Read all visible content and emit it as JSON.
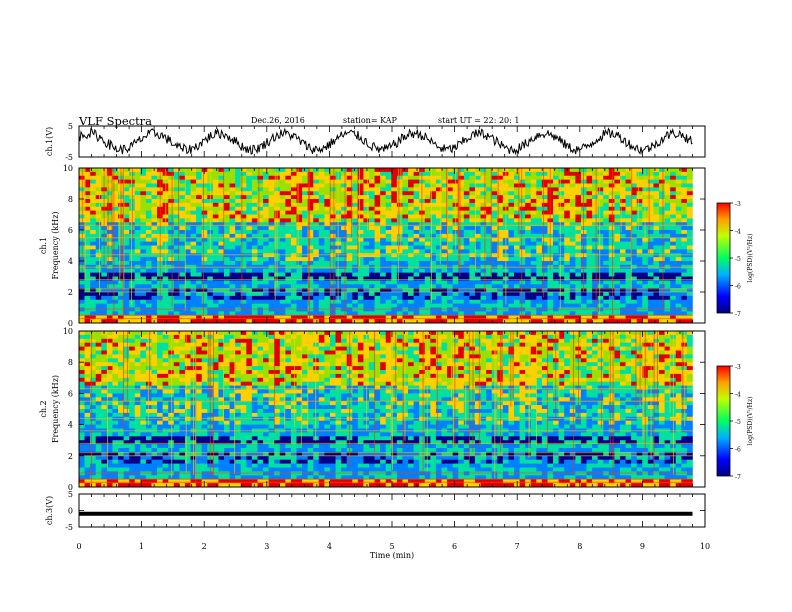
{
  "header": {
    "title": "VLF Spectra",
    "date": "Dec.26, 2016",
    "station": "station= KAP",
    "start_ut": "start UT =  22: 20: 1"
  },
  "chart_data": [
    {
      "type": "line",
      "name": "ch1-waveform",
      "ylabel": "ch.1(V)",
      "ylim": [
        -5,
        5
      ],
      "yticks": [
        "5",
        "-5"
      ],
      "xlim": [
        0,
        10
      ],
      "description_values": "oscillating voltage roughly between -4 and 4 V with ~1 min period",
      "color": "#000000"
    },
    {
      "type": "heatmap",
      "name": "ch1-spectrogram",
      "ylabel": "ch.1\nFrequency (kHz)",
      "ylim": [
        0,
        10
      ],
      "yticks": [
        "0",
        "2",
        "4",
        "6",
        "8",
        "10"
      ],
      "xlim": [
        0,
        10
      ],
      "colorbar": {
        "label": "log(PSD)(V²/Hz)",
        "range": [
          -7,
          -3
        ],
        "ticks": [
          "-3",
          "-4",
          "-5",
          "-6",
          "-7"
        ]
      }
    },
    {
      "type": "heatmap",
      "name": "ch2-spectrogram",
      "ylabel": "ch.2\nFrequency (kHz)",
      "ylim": [
        0,
        10
      ],
      "yticks": [
        "0",
        "2",
        "4",
        "6",
        "8",
        "10"
      ],
      "xlim": [
        0,
        10
      ],
      "colorbar": {
        "label": "log(PSD)(V²/Hz)",
        "range": [
          -7,
          -3
        ],
        "ticks": [
          "-3",
          "-4",
          "-5",
          "-6",
          "-7"
        ]
      }
    },
    {
      "type": "line",
      "name": "ch3-waveform",
      "ylabel": "ch.3(V)",
      "ylim": [
        -5,
        5
      ],
      "yticks": [
        "5",
        "0",
        "-5"
      ],
      "xlim": [
        0,
        10
      ],
      "value": -1,
      "color": "#000000"
    }
  ],
  "xaxis": {
    "label": "Time (min)",
    "ticks": [
      "0",
      "1",
      "2",
      "3",
      "4",
      "5",
      "6",
      "7",
      "8",
      "9",
      "10"
    ],
    "data_end": 9.8
  },
  "colors": {
    "low": "#00008b",
    "mid_low": "#0080ff",
    "mid": "#00e0a0",
    "mid_high": "#9be000",
    "high": "#ffd000",
    "max": "#e00000"
  }
}
